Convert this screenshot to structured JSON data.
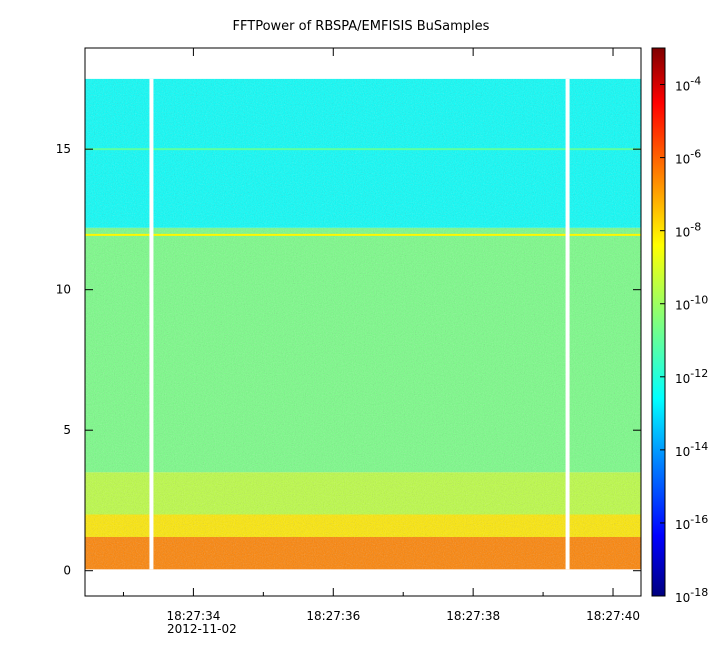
{
  "chart_data": {
    "type": "heatmap",
    "title": "FFTPower of RBSPA/EMFISIS  BuSamples",
    "xlabel": "",
    "ylabel": "",
    "x_tick_labels": [
      "18:27:34",
      "18:27:36",
      "18:27:38",
      "18:27:40"
    ],
    "x_tick_seconds": [
      34,
      36,
      38,
      40
    ],
    "x_minor_tick_seconds": [
      33,
      35,
      37,
      39
    ],
    "x_date_label": "2012-11-02",
    "xlim_seconds": [
      32.45,
      40.4
    ],
    "y_ticks": [
      0,
      5,
      10,
      15
    ],
    "ylim": [
      -0.9,
      18.6
    ],
    "data_extent": {
      "y_max": 17.5,
      "y_min": 0.05
    },
    "data_gaps_seconds": [
      33.4,
      39.35
    ],
    "colorbar": {
      "scale": "log",
      "range": [
        1e-18,
        0.001
      ],
      "tick_base": "10",
      "tick_exponents": [
        "-4",
        "-6",
        "-8",
        "-10",
        "-12",
        "-14",
        "-16",
        "-18"
      ],
      "colormap": [
        "#00007f",
        "#0000ff",
        "#007fff",
        "#00ffff",
        "#7fff7f",
        "#ffff00",
        "#ff7f00",
        "#ff0000",
        "#7f0000"
      ]
    },
    "spectral_bands": [
      {
        "y_from": 12.2,
        "y_to": 17.5,
        "log10_power": -12.3
      },
      {
        "y_from": 3.5,
        "y_to": 12.2,
        "log10_power": -10.6
      },
      {
        "y_from": 2.0,
        "y_to": 3.5,
        "log10_power": -9.6
      },
      {
        "y_from": 1.2,
        "y_to": 2.0,
        "log10_power": -8.3
      },
      {
        "y_from": 0.05,
        "y_to": 1.2,
        "log10_power": -6.8
      }
    ],
    "spectral_lines": [
      {
        "y": 15.0,
        "log10_power": -11.0
      },
      {
        "y": 11.95,
        "log10_power": -8.5
      }
    ]
  }
}
